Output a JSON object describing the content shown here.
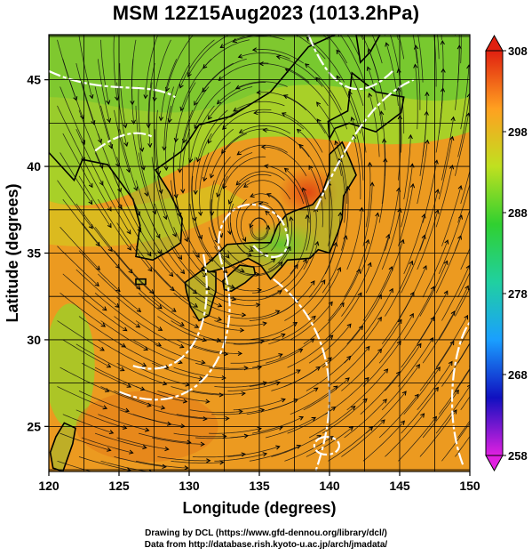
{
  "chart_data": {
    "type": "heatmap",
    "title": "MSM 12Z15Aug2023 (1013.2hPa)",
    "xlabel": "Longitude (degrees)",
    "ylabel": "Latitude  (degrees)",
    "xlim": [
      120,
      150
    ],
    "ylim": [
      22.4,
      47.6
    ],
    "xticks": [
      "120",
      "125",
      "130",
      "135",
      "140",
      "145",
      "150"
    ],
    "yticks": [
      "25",
      "30",
      "35",
      "40",
      "45"
    ],
    "grid": true,
    "colorbar": {
      "range": [
        258,
        308
      ],
      "ticks": [
        "258",
        "268",
        "278",
        "288",
        "298",
        "308"
      ],
      "colors": [
        "#e020e0",
        "#1010c0",
        "#1a9fff",
        "#20d0a0",
        "#30d030",
        "#c0e020",
        "#ffa020",
        "#e02010"
      ]
    },
    "cyclone_center": {
      "lon": 135,
      "lat": 36
    }
  },
  "credits": {
    "line1": "Drawing by DCL (https://www.gfd-dennou.org/library/dcl/)",
    "line2": "Data from http://database.rish.kyoto-u.ac.jp/arch/jmadata/"
  }
}
